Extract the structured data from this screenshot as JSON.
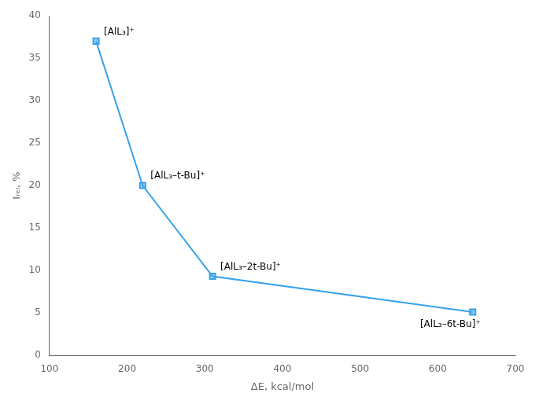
{
  "chart_data": {
    "type": "line",
    "x": [
      160,
      220,
      310,
      645
    ],
    "values": [
      37,
      20,
      9.3,
      5.1
    ],
    "marker": "square",
    "annotations": [
      {
        "text": "[AlL₃]⁺",
        "x": 160,
        "y": 37
      },
      {
        "text": "[AlL₃–t-Bu]⁺",
        "x": 220,
        "y": 20
      },
      {
        "text": "[AlL₃–2t-Bu]⁺",
        "x": 310,
        "y": 9.3
      },
      {
        "text": "[AlL₃–6t-Bu]⁺",
        "x": 645,
        "y": 5.1
      }
    ],
    "xlabel": "ΔE, kcal/mol",
    "ylabel": "Iᵣₑₗ, %",
    "xlim": [
      100,
      700
    ],
    "ylim": [
      0,
      40
    ],
    "xticks": [
      100,
      200,
      300,
      400,
      500,
      600,
      700
    ],
    "yticks": [
      0,
      5,
      10,
      15,
      20,
      25,
      30,
      35,
      40
    ],
    "grid": false
  }
}
